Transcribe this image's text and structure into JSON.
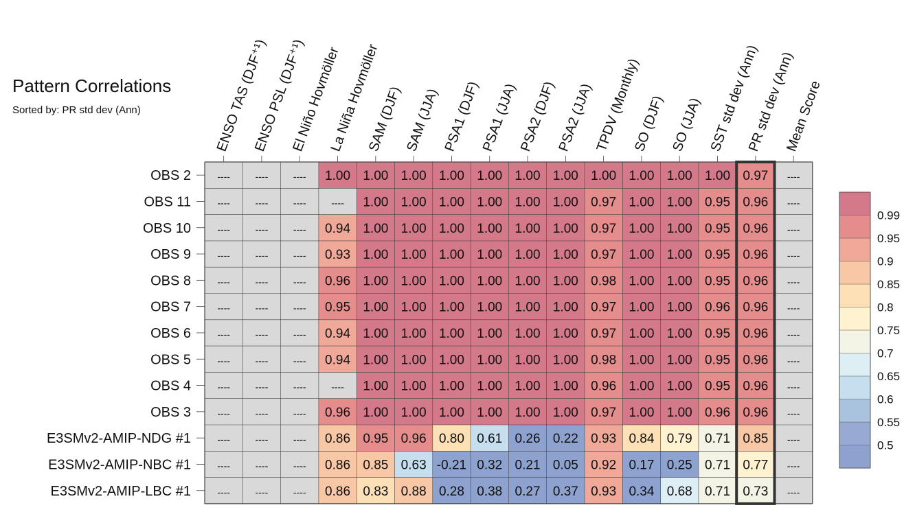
{
  "title": "Pattern Correlations",
  "subtitle": "Sorted by: PR std dev (Ann)",
  "chart_data": {
    "type": "heatmap",
    "highlighted_column": "PR std dev (Ann)",
    "missing_label": "----",
    "columns": [
      "ENSO TAS (DJF⁺¹)",
      "ENSO PSL (DJF⁺¹)",
      "El Niño Hovmöller",
      "La Niña Hovmöller",
      "SAM (DJF)",
      "SAM (JJA)",
      "PSA1 (DJF)",
      "PSA1 (JJA)",
      "PSA2 (DJF)",
      "PSA2 (JJA)",
      "TPDV (Monthly)",
      "SO (DJF)",
      "SO (JJA)",
      "SST std dev (Ann)",
      "PR std dev (Ann)",
      "Mean Score"
    ],
    "rows": [
      "OBS 2",
      "OBS 11",
      "OBS 10",
      "OBS 9",
      "OBS 8",
      "OBS 7",
      "OBS 6",
      "OBS 5",
      "OBS 4",
      "OBS 3",
      "E3SMv2-AMIP-NDG #1",
      "E3SMv2-AMIP-NBC #1",
      "E3SMv2-AMIP-LBC #1"
    ],
    "values": [
      [
        null,
        null,
        null,
        "1.00",
        "1.00",
        "1.00",
        "1.00",
        "1.00",
        "1.00",
        "1.00",
        "1.00",
        "1.00",
        "1.00",
        "1.00",
        "0.97",
        null
      ],
      [
        null,
        null,
        null,
        null,
        "1.00",
        "1.00",
        "1.00",
        "1.00",
        "1.00",
        "1.00",
        "0.97",
        "1.00",
        "1.00",
        "0.95",
        "0.96",
        null
      ],
      [
        null,
        null,
        null,
        "0.94",
        "1.00",
        "1.00",
        "1.00",
        "1.00",
        "1.00",
        "1.00",
        "0.97",
        "1.00",
        "1.00",
        "0.95",
        "0.96",
        null
      ],
      [
        null,
        null,
        null,
        "0.93",
        "1.00",
        "1.00",
        "1.00",
        "1.00",
        "1.00",
        "1.00",
        "0.97",
        "1.00",
        "1.00",
        "0.95",
        "0.96",
        null
      ],
      [
        null,
        null,
        null,
        "0.96",
        "1.00",
        "1.00",
        "1.00",
        "1.00",
        "1.00",
        "1.00",
        "0.98",
        "1.00",
        "1.00",
        "0.95",
        "0.96",
        null
      ],
      [
        null,
        null,
        null,
        "0.95",
        "1.00",
        "1.00",
        "1.00",
        "1.00",
        "1.00",
        "1.00",
        "0.97",
        "1.00",
        "1.00",
        "0.96",
        "0.96",
        null
      ],
      [
        null,
        null,
        null,
        "0.94",
        "1.00",
        "1.00",
        "1.00",
        "1.00",
        "1.00",
        "1.00",
        "0.97",
        "1.00",
        "1.00",
        "0.95",
        "0.96",
        null
      ],
      [
        null,
        null,
        null,
        "0.94",
        "1.00",
        "1.00",
        "1.00",
        "1.00",
        "1.00",
        "1.00",
        "0.98",
        "1.00",
        "1.00",
        "0.95",
        "0.96",
        null
      ],
      [
        null,
        null,
        null,
        null,
        "1.00",
        "1.00",
        "1.00",
        "1.00",
        "1.00",
        "1.00",
        "0.96",
        "1.00",
        "1.00",
        "0.95",
        "0.96",
        null
      ],
      [
        null,
        null,
        null,
        "0.96",
        "1.00",
        "1.00",
        "1.00",
        "1.00",
        "1.00",
        "1.00",
        "0.97",
        "1.00",
        "1.00",
        "0.96",
        "0.96",
        null
      ],
      [
        null,
        null,
        null,
        "0.86",
        "0.95",
        "0.96",
        "0.80",
        "0.61",
        "0.26",
        "0.22",
        "0.93",
        "0.84",
        "0.79",
        "0.71",
        "0.85",
        null
      ],
      [
        null,
        null,
        null,
        "0.86",
        "0.85",
        "0.63",
        "-0.21",
        "0.32",
        "0.21",
        "0.05",
        "0.92",
        "0.17",
        "0.25",
        "0.71",
        "0.77",
        null
      ],
      [
        null,
        null,
        null,
        "0.86",
        "0.83",
        "0.88",
        "0.28",
        "0.38",
        "0.27",
        "0.37",
        "0.93",
        "0.34",
        "0.68",
        "0.71",
        "0.73",
        null
      ]
    ],
    "colorbar": {
      "tick_labels": [
        "0.99",
        "0.95",
        "0.9",
        "0.85",
        "0.8",
        "0.75",
        "0.7",
        "0.65",
        "0.6",
        "0.55",
        "0.5"
      ],
      "bins_top_to_bottom": [
        "#d3798a",
        "#e58d8d",
        "#f0a898",
        "#f8c7a5",
        "#fde0b6",
        "#fff2d1",
        "#f3f3e6",
        "#ddeef5",
        "#c5dfee",
        "#a9c3df",
        "#98aad4",
        "#8ea2cf"
      ],
      "missing_color": "#d9d9d9"
    }
  }
}
